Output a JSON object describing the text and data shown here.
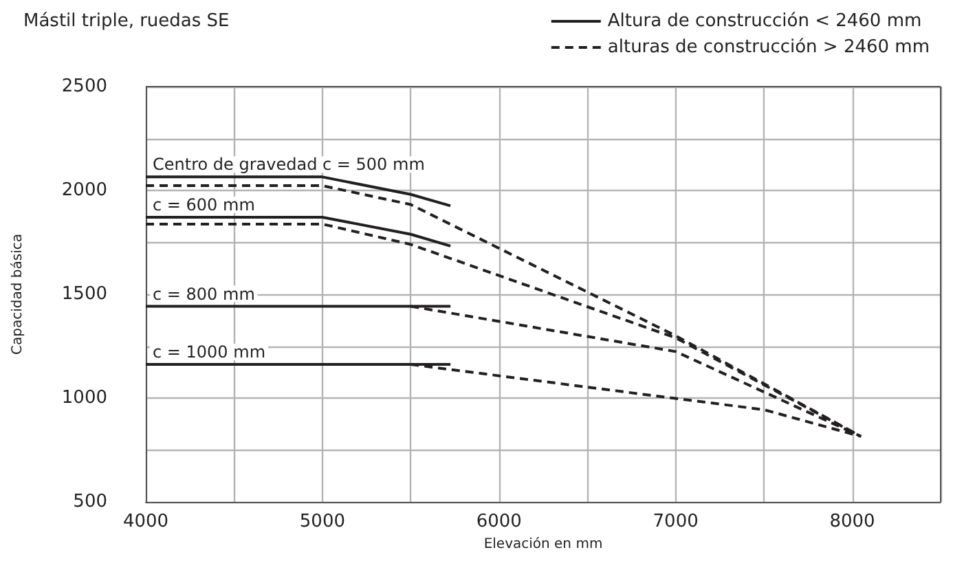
{
  "chart_data": {
    "type": "line",
    "title": "Mástil triple, ruedas SE",
    "xlabel": "Elevación en mm",
    "ylabel": "Capacidad básica",
    "xlim": [
      4000,
      8500
    ],
    "xticks": [
      4000,
      {
        "value": 4500,
        "label": null
      },
      5000,
      {
        "value": 5500,
        "label": null
      },
      6000,
      {
        "value": 6500,
        "label": null
      },
      7000,
      {
        "value": 7500,
        "label": null
      },
      8000,
      {
        "value": 8500,
        "label": null
      }
    ],
    "ylim": [
      500,
      2500
    ],
    "yticks": [
      500,
      {
        "value": 750,
        "label": null
      },
      1000,
      {
        "value": 1250,
        "label": null
      },
      1500,
      {
        "value": 1750,
        "label": null
      },
      2000,
      {
        "value": 2250,
        "label": null
      },
      2500
    ],
    "grid": true,
    "legend": "top right",
    "marker": "none",
    "series": [
      {
        "name": "Altura de construcción < 2460 mm",
        "color": "#231f20",
        "line_style": "solid",
        "x": [
          4000,
          5000,
          5500,
          5725,
          null,
          4000,
          5000,
          5500,
          5725,
          null,
          4000,
          5500,
          5725,
          null,
          4000,
          5500,
          5725
        ],
        "values": [
          2065,
          2065,
          1981,
          1926,
          null,
          1871,
          1871,
          1789,
          1732,
          null,
          1442,
          1442,
          1442,
          null,
          1162,
          1162,
          1162
        ]
      },
      {
        "name": "alturas de construcción > 2460 mm",
        "color": "#231f20",
        "line_style": "dashed",
        "x": [
          4000,
          5000,
          5500,
          7000,
          8050,
          null,
          4000,
          5000,
          5500,
          7000,
          8050,
          null,
          5500,
          7000,
          8050,
          null,
          5500,
          7000,
          7500,
          8050
        ],
        "values": [
          2023,
          2023,
          1932,
          1300,
          815,
          null,
          1838,
          1838,
          1740,
          1290,
          815,
          null,
          1442,
          1224,
          815,
          null,
          1162,
          998,
          944,
          815
        ]
      }
    ],
    "annotations": [
      {
        "text": "Centro de gravedad c = 500 mm",
        "y": 2065
      },
      {
        "text": "c = 600 mm",
        "y": 1871
      },
      {
        "text": "c = 800 mm",
        "y": 1442
      },
      {
        "text": "c = 1000 mm",
        "y": 1162
      }
    ]
  }
}
